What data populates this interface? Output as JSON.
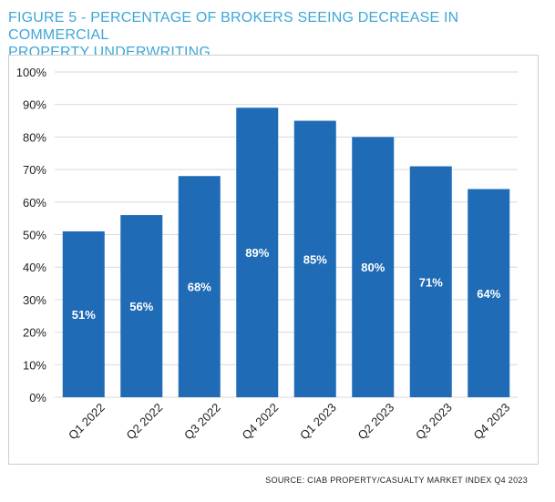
{
  "figure": {
    "title_line1": "FIGURE 5 - PERCENTAGE OF BROKERS SEEING DECREASE IN COMMERCIAL",
    "title_line2": "PROPERTY UNDERWRITING",
    "source": "SOURCE: CIAB PROPERTY/CASUALTY MARKET INDEX Q4 2023"
  },
  "colors": {
    "title": "#3fa7d6",
    "bar": "#1f6bb5",
    "grid": "#d9d9d9",
    "label": "#ffffff"
  },
  "chart_data": {
    "type": "bar",
    "categories": [
      "Q1 2022",
      "Q2 2022",
      "Q3 2022",
      "Q4 2022",
      "Q1 2023",
      "Q2 2023",
      "Q3 2023",
      "Q4 2023"
    ],
    "values": [
      51,
      56,
      68,
      89,
      85,
      80,
      71,
      64
    ],
    "data_labels": [
      "51%",
      "56%",
      "68%",
      "89%",
      "85%",
      "80%",
      "71%",
      "64%"
    ],
    "ylim": [
      0,
      100
    ],
    "yticks": [
      0,
      10,
      20,
      30,
      40,
      50,
      60,
      70,
      80,
      90,
      100
    ],
    "ytick_labels": [
      "0%",
      "10%",
      "20%",
      "30%",
      "40%",
      "50%",
      "60%",
      "70%",
      "80%",
      "90%",
      "100%"
    ],
    "grid": true,
    "legend": "none"
  }
}
